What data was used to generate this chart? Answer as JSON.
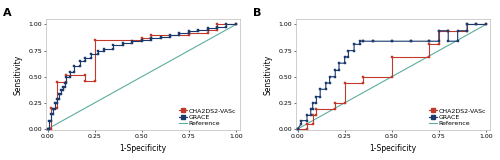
{
  "panel_A_grace_x": [
    0,
    0.01,
    0.01,
    0.02,
    0.02,
    0.03,
    0.03,
    0.04,
    0.04,
    0.05,
    0.05,
    0.06,
    0.06,
    0.07,
    0.07,
    0.08,
    0.08,
    0.09,
    0.09,
    0.1,
    0.1,
    0.12,
    0.12,
    0.14,
    0.14,
    0.17,
    0.17,
    0.2,
    0.2,
    0.23,
    0.23,
    0.27,
    0.27,
    0.3,
    0.3,
    0.35,
    0.35,
    0.4,
    0.4,
    0.45,
    0.45,
    0.5,
    0.5,
    0.55,
    0.55,
    0.6,
    0.6,
    0.65,
    0.65,
    0.7,
    0.7,
    0.75,
    0.75,
    0.8,
    0.8,
    0.85,
    0.85,
    0.9,
    0.9,
    0.95,
    0.95,
    1.0
  ],
  "panel_A_grace_y": [
    0,
    0,
    0.08,
    0.08,
    0.14,
    0.14,
    0.19,
    0.19,
    0.25,
    0.25,
    0.29,
    0.29,
    0.33,
    0.33,
    0.37,
    0.37,
    0.4,
    0.4,
    0.44,
    0.44,
    0.5,
    0.5,
    0.55,
    0.55,
    0.6,
    0.6,
    0.65,
    0.65,
    0.68,
    0.68,
    0.72,
    0.72,
    0.75,
    0.75,
    0.77,
    0.77,
    0.8,
    0.8,
    0.82,
    0.82,
    0.84,
    0.84,
    0.85,
    0.85,
    0.87,
    0.87,
    0.88,
    0.88,
    0.9,
    0.9,
    0.92,
    0.92,
    0.94,
    0.94,
    0.95,
    0.95,
    0.97,
    0.97,
    0.98,
    0.98,
    1.0,
    1.0
  ],
  "panel_A_cha_x": [
    0,
    0.02,
    0.02,
    0.05,
    0.05,
    0.1,
    0.1,
    0.2,
    0.2,
    0.25,
    0.25,
    0.5,
    0.5,
    0.55,
    0.55,
    0.75,
    0.75,
    0.85,
    0.85,
    0.9,
    0.9,
    1.0
  ],
  "panel_A_cha_y": [
    0,
    0.0,
    0.2,
    0.2,
    0.45,
    0.45,
    0.52,
    0.52,
    0.46,
    0.46,
    0.85,
    0.85,
    0.87,
    0.87,
    0.9,
    0.9,
    0.92,
    0.92,
    0.95,
    0.95,
    1.0,
    1.0
  ],
  "panel_B_grace_x": [
    0,
    0.0,
    0.02,
    0.02,
    0.05,
    0.05,
    0.07,
    0.07,
    0.08,
    0.08,
    0.1,
    0.1,
    0.12,
    0.12,
    0.15,
    0.15,
    0.17,
    0.17,
    0.2,
    0.2,
    0.22,
    0.22,
    0.25,
    0.25,
    0.27,
    0.27,
    0.3,
    0.3,
    0.33,
    0.33,
    0.35,
    0.35,
    0.4,
    0.4,
    0.5,
    0.5,
    0.6,
    0.6,
    0.7,
    0.7,
    0.75,
    0.75,
    0.8,
    0.8,
    0.85,
    0.85,
    0.9,
    0.9,
    0.95,
    0.95,
    1.0
  ],
  "panel_B_grace_y": [
    0,
    0.0,
    0.05,
    0.08,
    0.08,
    0.13,
    0.13,
    0.19,
    0.19,
    0.25,
    0.25,
    0.31,
    0.31,
    0.38,
    0.38,
    0.44,
    0.44,
    0.5,
    0.5,
    0.56,
    0.56,
    0.63,
    0.63,
    0.69,
    0.69,
    0.75,
    0.75,
    0.81,
    0.81,
    0.84,
    0.84,
    0.84,
    0.84,
    0.84,
    0.84,
    0.84,
    0.84,
    0.84,
    0.84,
    0.84,
    0.84,
    0.94,
    0.94,
    0.84,
    0.84,
    0.94,
    0.94,
    1.0,
    1.0,
    1.0,
    1.0
  ],
  "panel_B_cha_x": [
    0,
    0.05,
    0.05,
    0.08,
    0.08,
    0.1,
    0.1,
    0.2,
    0.2,
    0.25,
    0.25,
    0.35,
    0.35,
    0.5,
    0.5,
    0.7,
    0.7,
    0.75,
    0.75,
    0.8,
    0.8,
    0.9,
    0.9,
    1.0
  ],
  "panel_B_cha_y": [
    0,
    0.0,
    0.05,
    0.05,
    0.13,
    0.13,
    0.19,
    0.19,
    0.25,
    0.25,
    0.44,
    0.44,
    0.5,
    0.5,
    0.69,
    0.69,
    0.81,
    0.81,
    0.94,
    0.94,
    0.94,
    0.94,
    1.0,
    1.0
  ],
  "grace_color": "#1a3a6e",
  "cha_color": "#c0392b",
  "ref_color": "#5dada0",
  "plot_bg": "#ffffff",
  "fig_bg": "#ffffff",
  "tick_fontsize": 4.5,
  "label_fontsize": 5.5,
  "legend_fontsize": 4.5,
  "panel_label_fontsize": 8,
  "xticks": [
    0.0,
    0.25,
    0.5,
    0.75,
    1.0
  ],
  "yticks": [
    0.0,
    0.25,
    0.5,
    0.75,
    1.0
  ],
  "xticklabels": [
    "0.00",
    "0.25",
    "0.50",
    "0.75",
    "1.00"
  ],
  "yticklabels": [
    "0.00",
    "0.25",
    "0.50",
    "0.75",
    "1.00"
  ],
  "xlabel": "1-Specificity",
  "ylabel": "Sensitivity",
  "legend_A": [
    "CHA2DS2-VASc",
    "GRACE",
    "Reference"
  ],
  "legend_B": [
    "CHA2DS2-VASc",
    "GRACE",
    "Reference"
  ]
}
